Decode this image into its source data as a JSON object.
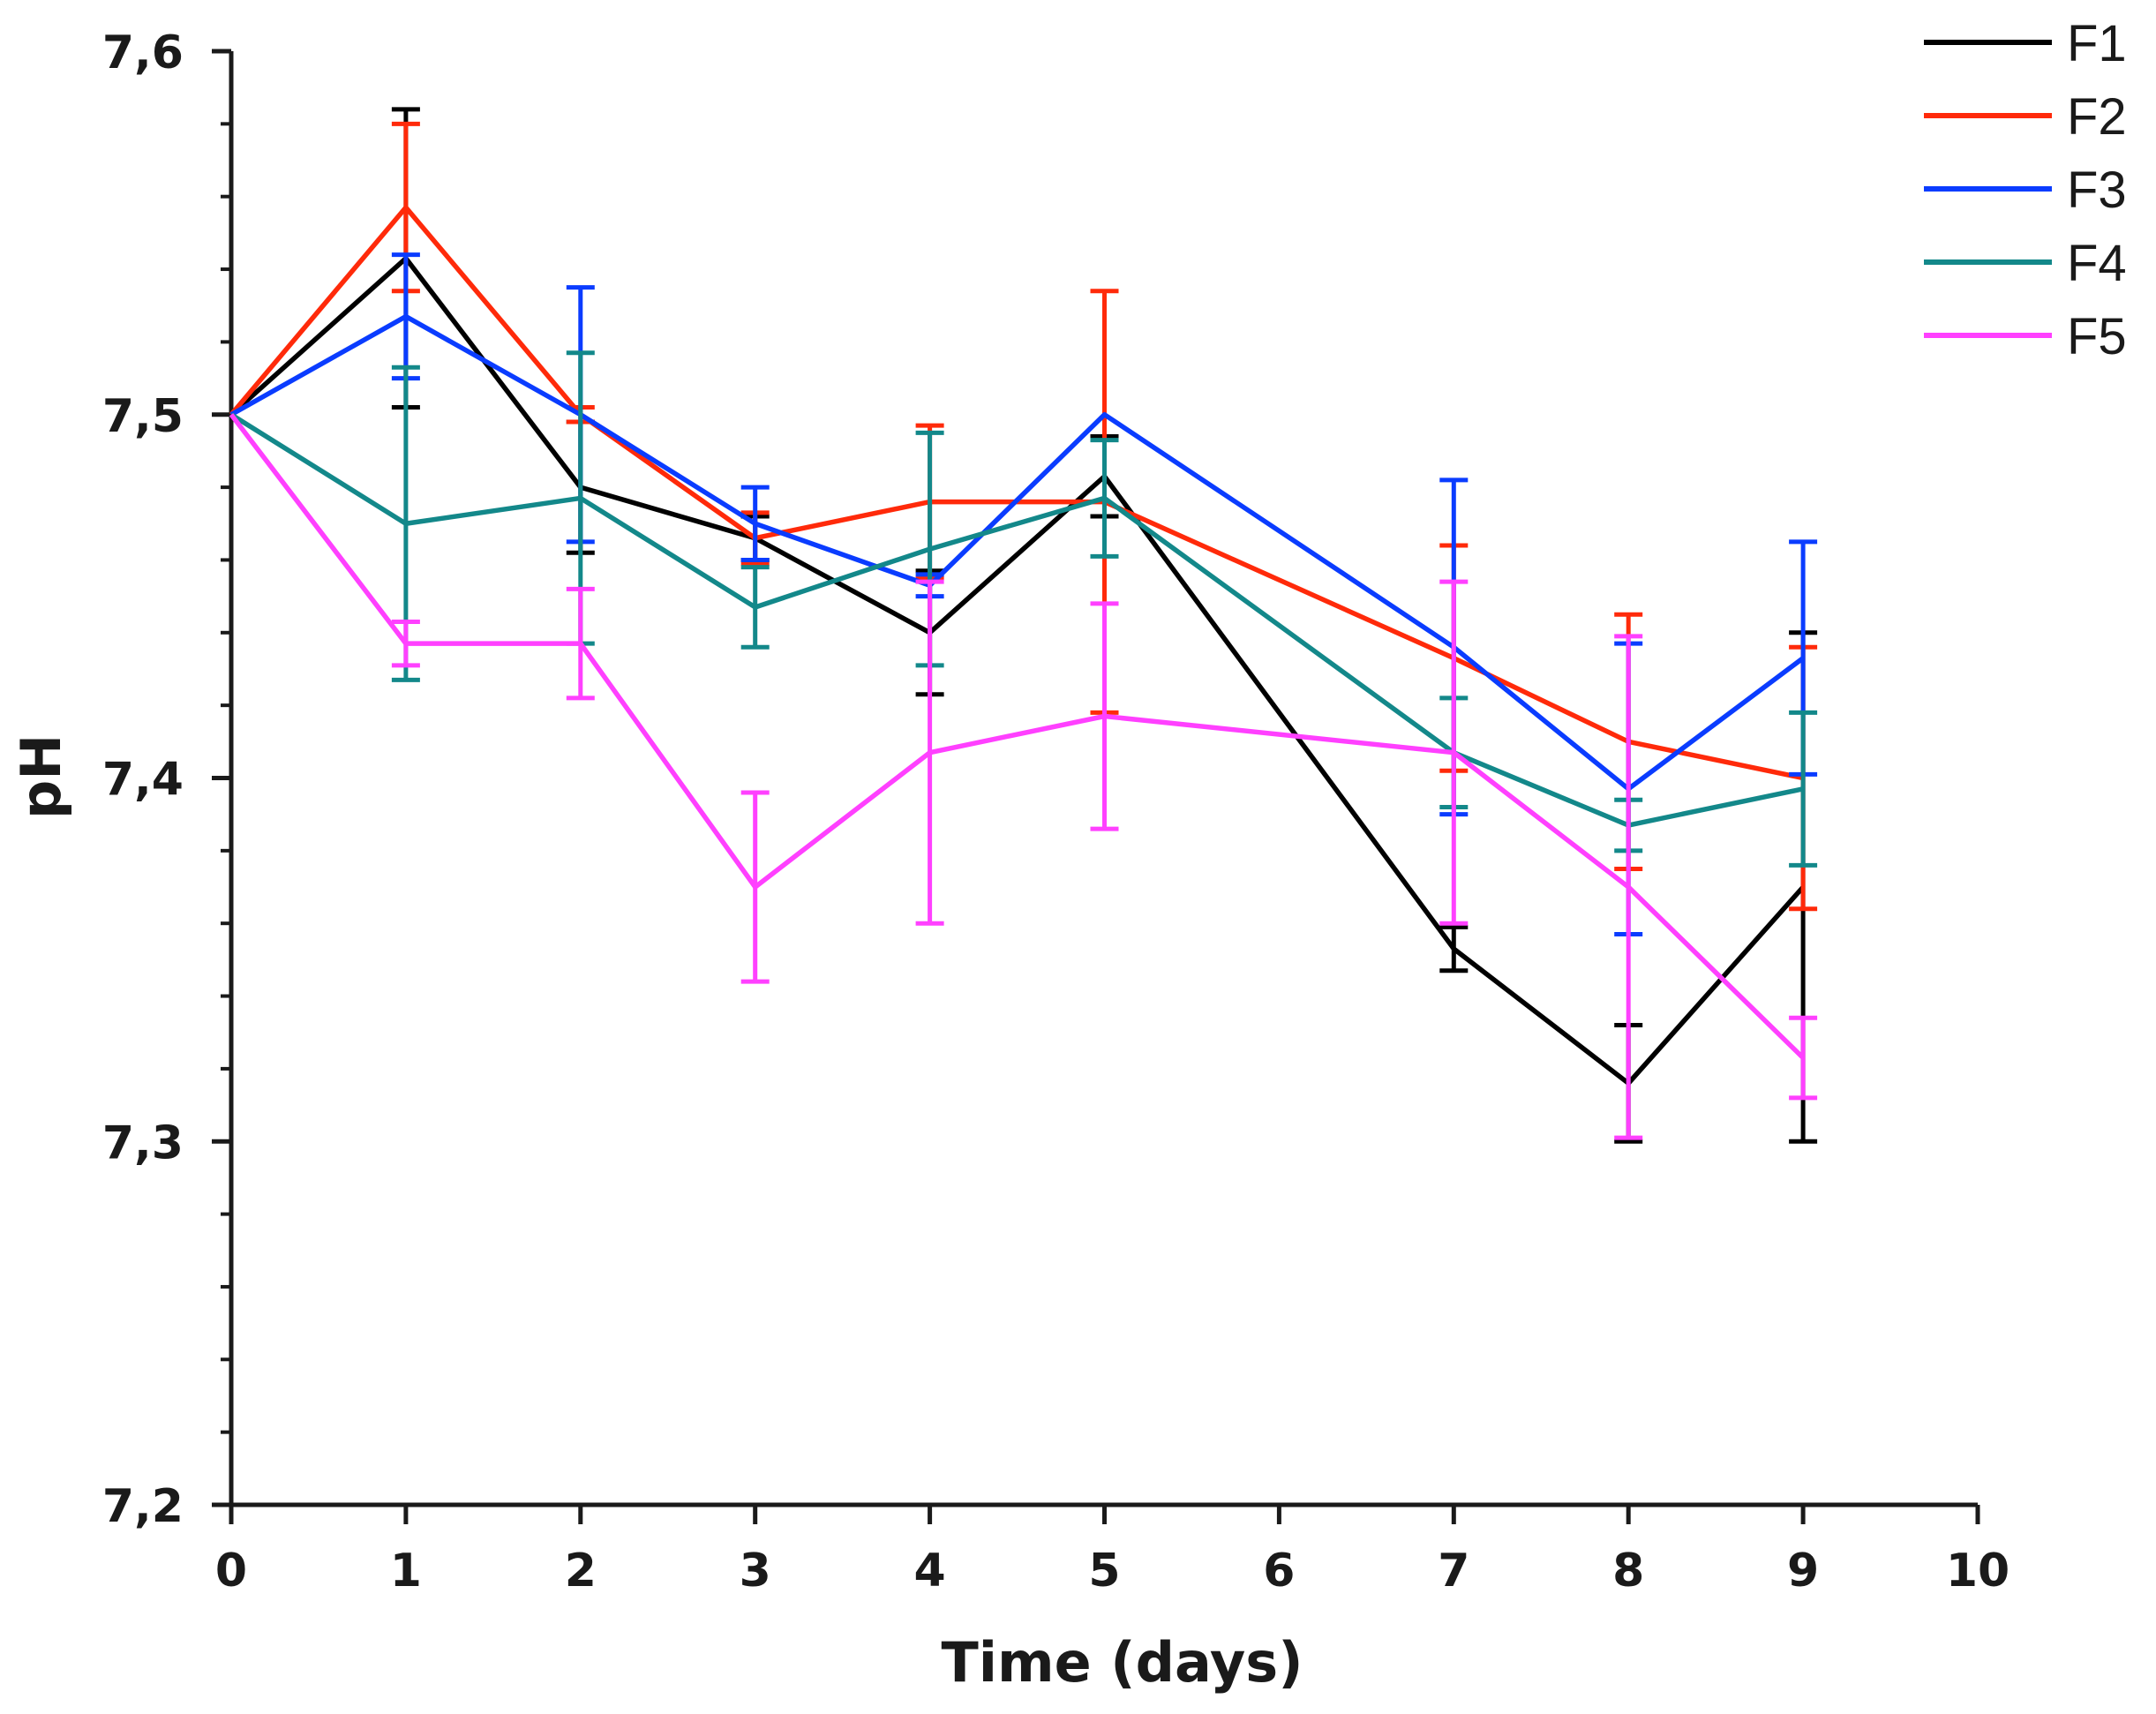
{
  "chart_data": {
    "type": "line",
    "title": "",
    "xlabel": "Time (days)",
    "ylabel": "pH",
    "xlim": [
      0,
      10
    ],
    "ylim": [
      7.2,
      7.6
    ],
    "x_ticks": [
      "0",
      "1",
      "2",
      "3",
      "4",
      "5",
      "6",
      "7",
      "8",
      "9",
      "10"
    ],
    "y_ticks": [
      "7,2",
      "7,3",
      "7,4",
      "7,5",
      "7,6"
    ],
    "y_tick_values": [
      7.2,
      7.3,
      7.4,
      7.5,
      7.6
    ],
    "x": [
      0,
      1,
      2,
      3,
      4,
      5,
      7,
      8,
      9
    ],
    "grid": false,
    "legend_position": "top-right",
    "series": [
      {
        "name": "F1",
        "color": "#000000",
        "values": [
          7.5,
          7.543,
          7.48,
          7.466,
          7.44,
          7.483,
          7.353,
          7.316,
          7.37
        ],
        "errors": [
          0,
          0.041,
          0.018,
          0.006,
          0.017,
          0.011,
          0.006,
          0.016,
          0.07
        ]
      },
      {
        "name": "F2",
        "color": "#ff2a0a",
        "values": [
          7.5,
          7.557,
          7.5,
          7.466,
          7.476,
          7.476,
          7.433,
          7.41,
          7.4
        ],
        "errors": [
          0,
          0.023,
          0.002,
          0.007,
          0.021,
          0.058,
          0.031,
          0.035,
          0.036
        ]
      },
      {
        "name": "F3",
        "color": "#0a3cff",
        "values": [
          7.5,
          7.527,
          7.5,
          7.47,
          7.453,
          7.5,
          7.436,
          7.397,
          7.433
        ],
        "errors": [
          0,
          0.017,
          0.035,
          0.01,
          0.003,
          0.0,
          0.046,
          0.04,
          0.032
        ]
      },
      {
        "name": "F4",
        "color": "#13888a",
        "values": [
          7.5,
          7.47,
          7.477,
          7.447,
          7.463,
          7.477,
          7.407,
          7.387,
          7.397
        ],
        "errors": [
          0,
          0.043,
          0.04,
          0.011,
          0.032,
          0.016,
          0.015,
          0.007,
          0.021
        ]
      },
      {
        "name": "F5",
        "color": "#ff40ff",
        "values": [
          7.5,
          7.437,
          7.437,
          7.37,
          7.407,
          7.417,
          7.407,
          7.37,
          7.323
        ],
        "errors": [
          0,
          0.006,
          0.015,
          0.026,
          0.047,
          0.031,
          0.047,
          0.069,
          0.011
        ]
      }
    ]
  }
}
